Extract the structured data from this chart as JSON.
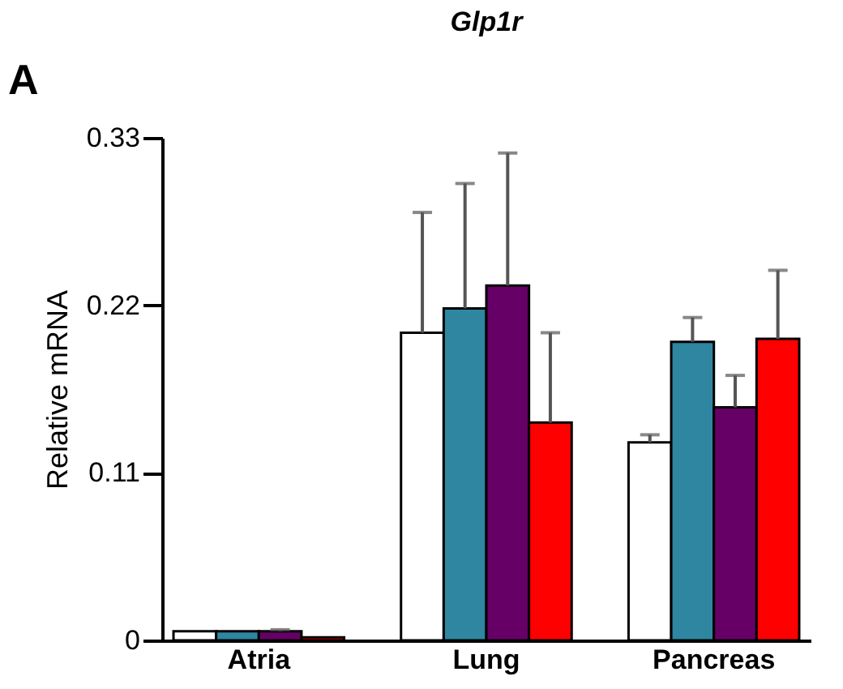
{
  "chart_data": {
    "type": "bar",
    "title": "Glp1r",
    "ylabel": "Relative mRNA",
    "annotations": [
      "A"
    ],
    "categories": [
      "Atria",
      "Lung",
      "Pancreas"
    ],
    "series": [
      {
        "color": "#ffffff",
        "values": [
          0.006,
          0.202,
          0.13
        ],
        "errors": [
          null,
          [
            0.202,
            0.281
          ],
          [
            0.13,
            0.135
          ]
        ]
      },
      {
        "color": "#2e86a0",
        "values": [
          0.006,
          0.218,
          0.196
        ],
        "errors": [
          null,
          [
            0.218,
            0.3
          ],
          [
            0.196,
            0.212
          ]
        ]
      },
      {
        "color": "#660066",
        "values": [
          0.006,
          0.233,
          0.153
        ],
        "errors": [
          [
            0.006,
            0.007
          ],
          [
            0.233,
            0.32
          ],
          [
            0.153,
            0.174
          ]
        ]
      },
      {
        "color": "#ff0000",
        "values": [
          0.002,
          0.143,
          0.198
        ],
        "errors": [
          null,
          [
            0.143,
            0.202
          ],
          [
            0.198,
            0.243
          ]
        ]
      }
    ],
    "ylim": [
      0,
      0.33
    ],
    "yticks": [
      0,
      0.11,
      0.22,
      0.33
    ],
    "grid": false,
    "legend": false
  }
}
